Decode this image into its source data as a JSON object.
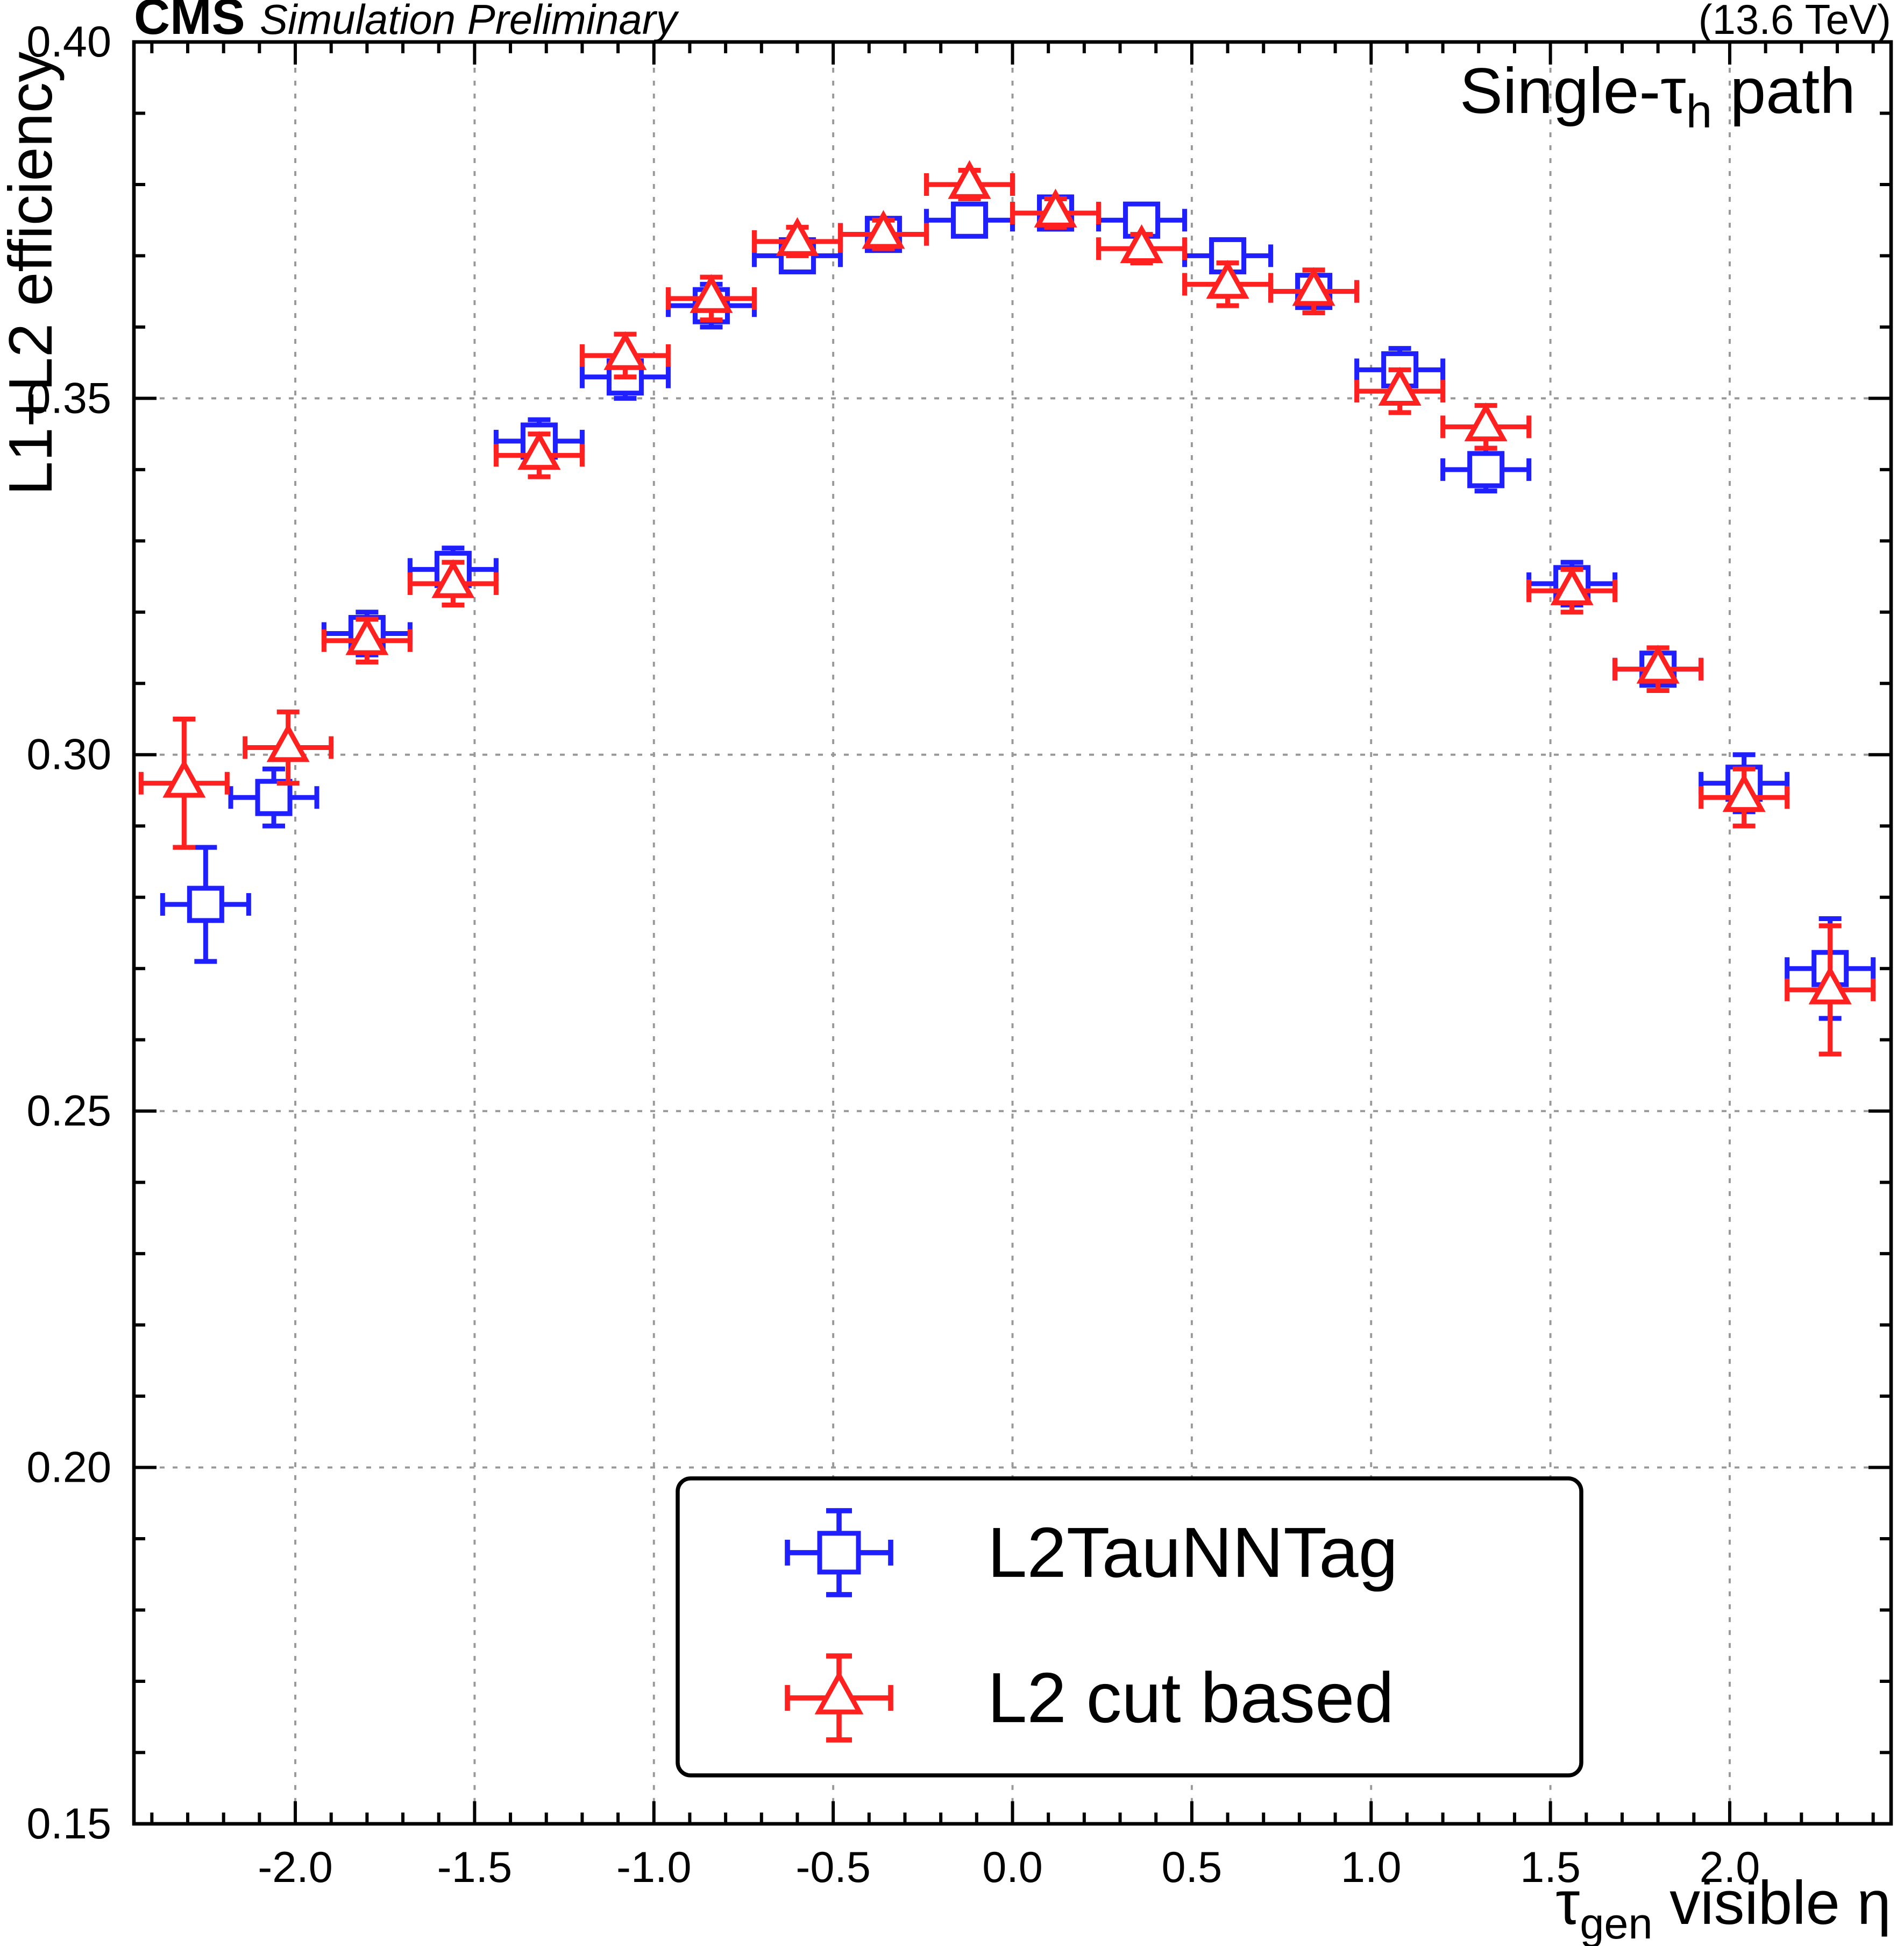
{
  "header": {
    "experiment": "CMS",
    "context": "Simulation Preliminary",
    "energy": "(13.6 TeV)"
  },
  "annotation": {
    "pre": "Single-τ",
    "sub": "h",
    "post": " path"
  },
  "axes": {
    "x": {
      "title_pre": "τ",
      "title_sub": "gen",
      "title_post": " visible η",
      "min": -2.45,
      "max": 2.45,
      "major_ticks": [
        -2.0,
        -1.5,
        -1.0,
        -0.5,
        0.0,
        0.5,
        1.0,
        1.5,
        2.0
      ],
      "tick_labels": [
        "-2.0",
        "-1.5",
        "-1.0",
        "-0.5",
        "0.0",
        "0.5",
        "1.0",
        "1.5",
        "2.0"
      ],
      "minor_step": 0.1
    },
    "y": {
      "title": "L1+L2 efficiency",
      "min": 0.15,
      "max": 0.4,
      "major_ticks": [
        0.15,
        0.2,
        0.25,
        0.3,
        0.35,
        0.4
      ],
      "tick_labels": [
        "0.15",
        "0.20",
        "0.25",
        "0.30",
        "0.35",
        "0.40"
      ],
      "minor_step": 0.01
    }
  },
  "legend": {
    "entries": [
      {
        "label": "L2TauNNTag",
        "marker": "square",
        "color": "#2020ff"
      },
      {
        "label": "L2 cut based",
        "marker": "triangle",
        "color": "#ff2020"
      }
    ]
  },
  "colors": {
    "blue": "#2020ff",
    "red": "#ff2020",
    "grid": "#999999",
    "frame": "#000000",
    "background": "#ffffff"
  },
  "chart_data": {
    "type": "scatter",
    "title": "CMS Simulation Preliminary (13.6 TeV), Single-tau_h path",
    "xlabel": "tau_gen visible eta",
    "ylabel": "L1+L2 efficiency",
    "xlim": [
      -2.45,
      2.45
    ],
    "ylim": [
      0.15,
      0.4
    ],
    "grid": true,
    "legend_position": "bottom-center",
    "series": [
      {
        "name": "L2TauNNTag",
        "marker": "square",
        "color": "#2020ff",
        "xerr": 0.12,
        "x": [
          -2.25,
          -2.06,
          -1.8,
          -1.56,
          -1.32,
          -1.08,
          -0.84,
          -0.6,
          -0.36,
          -0.12,
          0.12,
          0.36,
          0.6,
          0.84,
          1.08,
          1.32,
          1.56,
          1.8,
          2.04,
          2.28
        ],
        "y": [
          0.279,
          0.294,
          0.317,
          0.326,
          0.344,
          0.353,
          0.363,
          0.37,
          0.373,
          0.375,
          0.376,
          0.375,
          0.37,
          0.365,
          0.354,
          0.34,
          0.324,
          0.312,
          0.296,
          0.27
        ],
        "yerr": [
          0.008,
          0.004,
          0.003,
          0.003,
          0.003,
          0.003,
          0.003,
          0.002,
          0.002,
          0.002,
          0.002,
          0.002,
          0.002,
          0.003,
          0.003,
          0.003,
          0.003,
          0.003,
          0.004,
          0.007
        ]
      },
      {
        "name": "L2 cut based",
        "marker": "triangle",
        "color": "#ff2020",
        "xerr": 0.12,
        "x": [
          -2.31,
          -2.02,
          -1.8,
          -1.56,
          -1.32,
          -1.08,
          -0.84,
          -0.6,
          -0.36,
          -0.12,
          0.12,
          0.36,
          0.6,
          0.84,
          1.08,
          1.32,
          1.56,
          1.8,
          2.04,
          2.28
        ],
        "y": [
          0.296,
          0.301,
          0.316,
          0.324,
          0.342,
          0.356,
          0.364,
          0.372,
          0.373,
          0.38,
          0.376,
          0.371,
          0.366,
          0.365,
          0.351,
          0.346,
          0.323,
          0.312,
          0.294,
          0.267
        ],
        "yerr": [
          0.009,
          0.005,
          0.003,
          0.003,
          0.003,
          0.003,
          0.003,
          0.002,
          0.002,
          0.002,
          0.002,
          0.002,
          0.003,
          0.003,
          0.003,
          0.003,
          0.003,
          0.003,
          0.004,
          0.009
        ]
      }
    ]
  }
}
